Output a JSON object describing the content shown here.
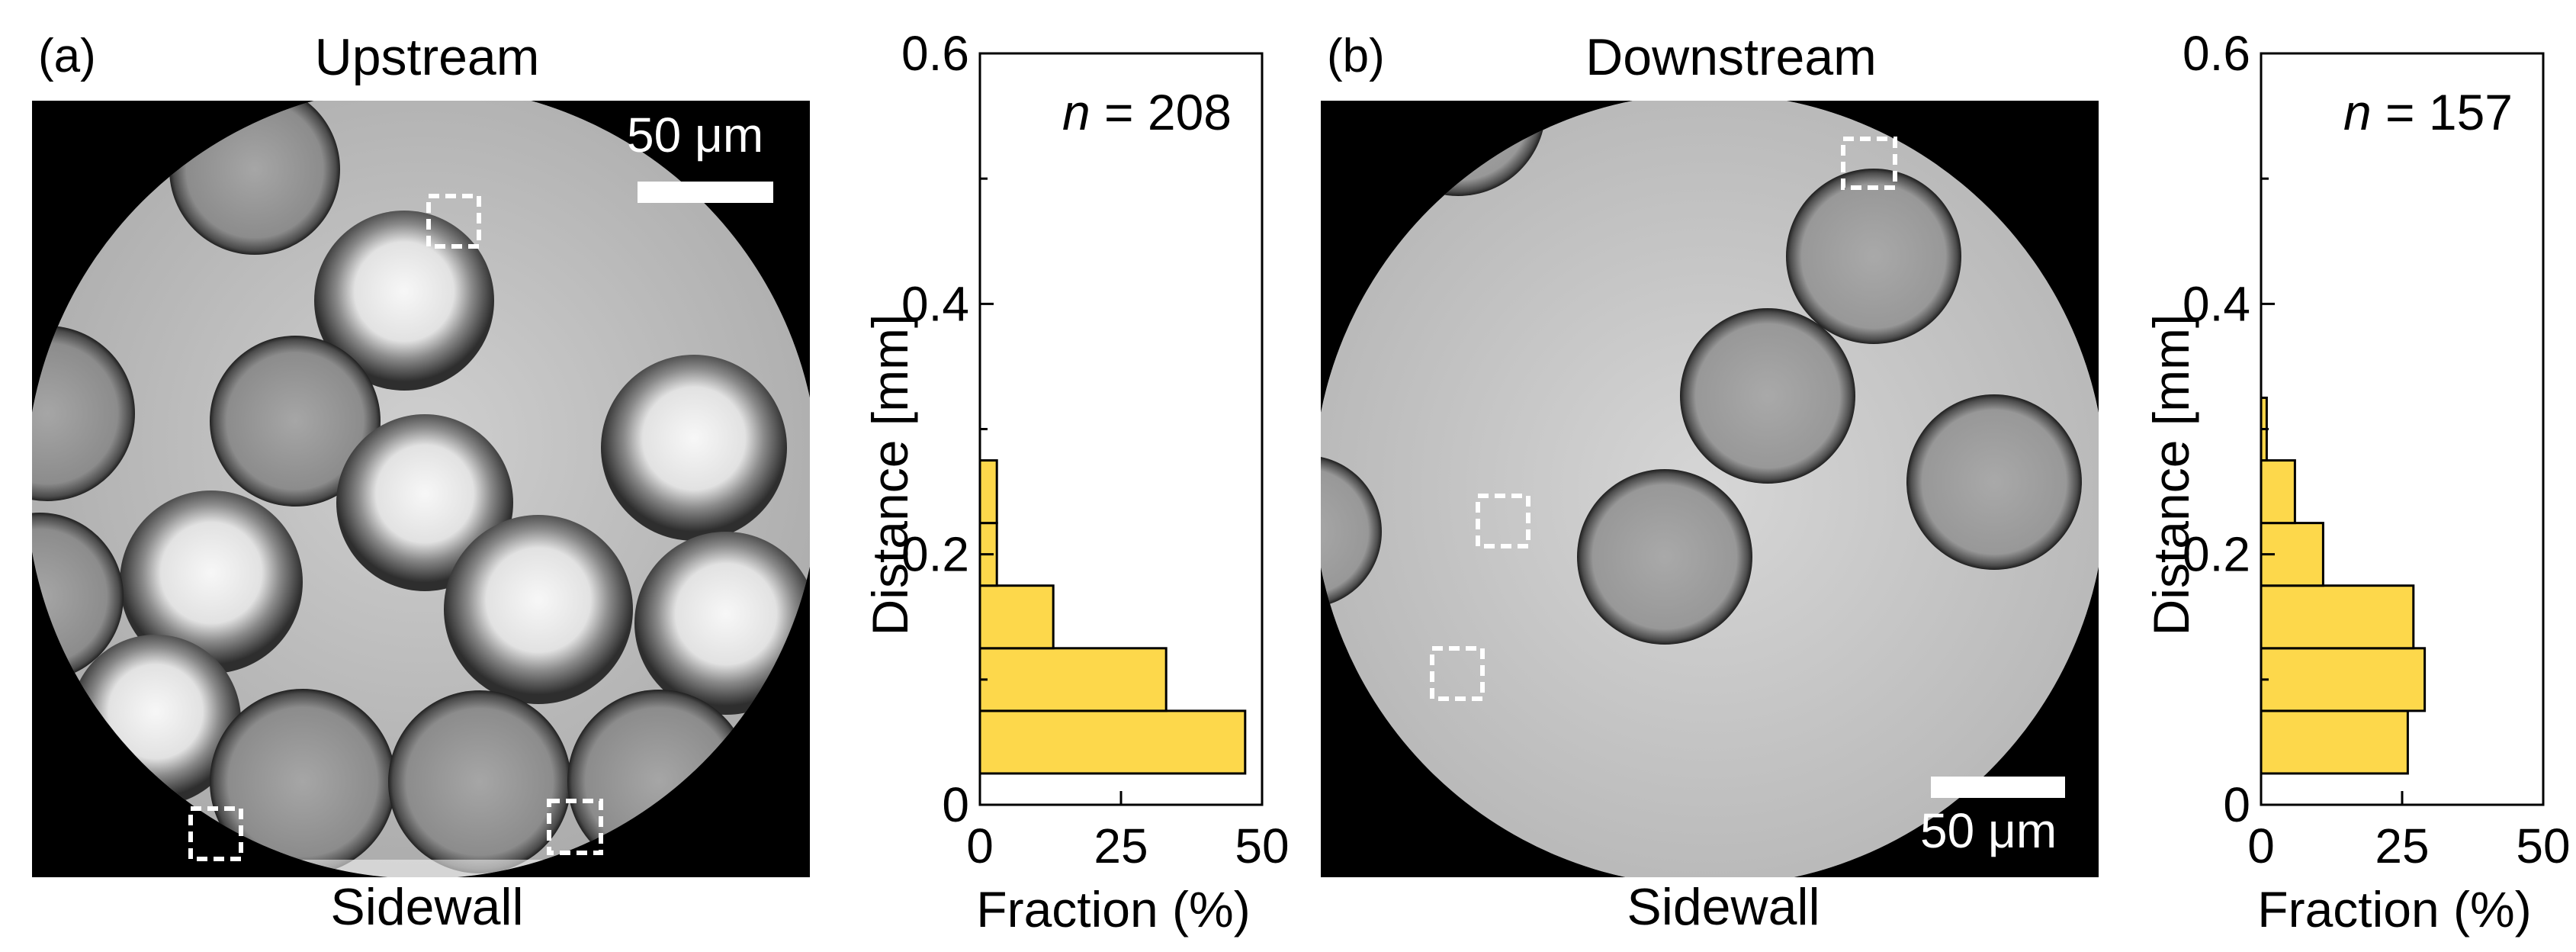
{
  "panel_a": {
    "label": "(a)",
    "title": "Upstream",
    "bottom_label": "Sidewall",
    "scale_bar_label": "50 μm"
  },
  "panel_b": {
    "label": "(b)",
    "title": "Downstream",
    "bottom_label": "Sidewall",
    "scale_bar_label": "50 μm"
  },
  "colors": {
    "bar_fill": "#fdd84b",
    "bar_stroke": "#000000",
    "micrograph_background": "#000000",
    "scale_bar": "#ffffff",
    "roi_box": "#ffffff"
  },
  "chart_data": [
    {
      "type": "bar",
      "orientation": "horizontal",
      "panel": "a",
      "annotation": "n = 208",
      "annotation_n_italic": "n",
      "annotation_rest": " = 208",
      "xlabel": "Fraction (%)",
      "ylabel": "Distance [mm]",
      "xlim": [
        0,
        50
      ],
      "ylim": [
        0,
        0.6
      ],
      "xticks": [
        0,
        25,
        50
      ],
      "yticks": [
        0,
        0.2,
        0.4,
        0.6
      ],
      "xtick_labels": [
        "0",
        "25",
        "50"
      ],
      "ytick_labels": [
        "0",
        "0.2",
        "0.4",
        "0.6"
      ],
      "bins": [
        {
          "y0": 0.025,
          "y1": 0.075,
          "value": 47
        },
        {
          "y0": 0.075,
          "y1": 0.125,
          "value": 33
        },
        {
          "y0": 0.125,
          "y1": 0.175,
          "value": 13
        },
        {
          "y0": 0.175,
          "y1": 0.225,
          "value": 3
        },
        {
          "y0": 0.225,
          "y1": 0.275,
          "value": 3
        }
      ]
    },
    {
      "type": "bar",
      "orientation": "horizontal",
      "panel": "b",
      "annotation": "n = 157",
      "annotation_n_italic": "n",
      "annotation_rest": " = 157",
      "xlabel": "Fraction (%)",
      "ylabel": "Distance [mm]",
      "xlim": [
        0,
        50
      ],
      "ylim": [
        0,
        0.6
      ],
      "xticks": [
        0,
        25,
        50
      ],
      "yticks": [
        0,
        0.2,
        0.4,
        0.6
      ],
      "xtick_labels": [
        "0",
        "25",
        "50"
      ],
      "ytick_labels": [
        "0",
        "0.2",
        "0.4",
        "0.6"
      ],
      "bins": [
        {
          "y0": 0.025,
          "y1": 0.075,
          "value": 26
        },
        {
          "y0": 0.075,
          "y1": 0.125,
          "value": 29
        },
        {
          "y0": 0.125,
          "y1": 0.175,
          "value": 27
        },
        {
          "y0": 0.175,
          "y1": 0.225,
          "value": 11
        },
        {
          "y0": 0.225,
          "y1": 0.275,
          "value": 6
        },
        {
          "y0": 0.275,
          "y1": 0.325,
          "value": 1
        }
      ]
    }
  ]
}
